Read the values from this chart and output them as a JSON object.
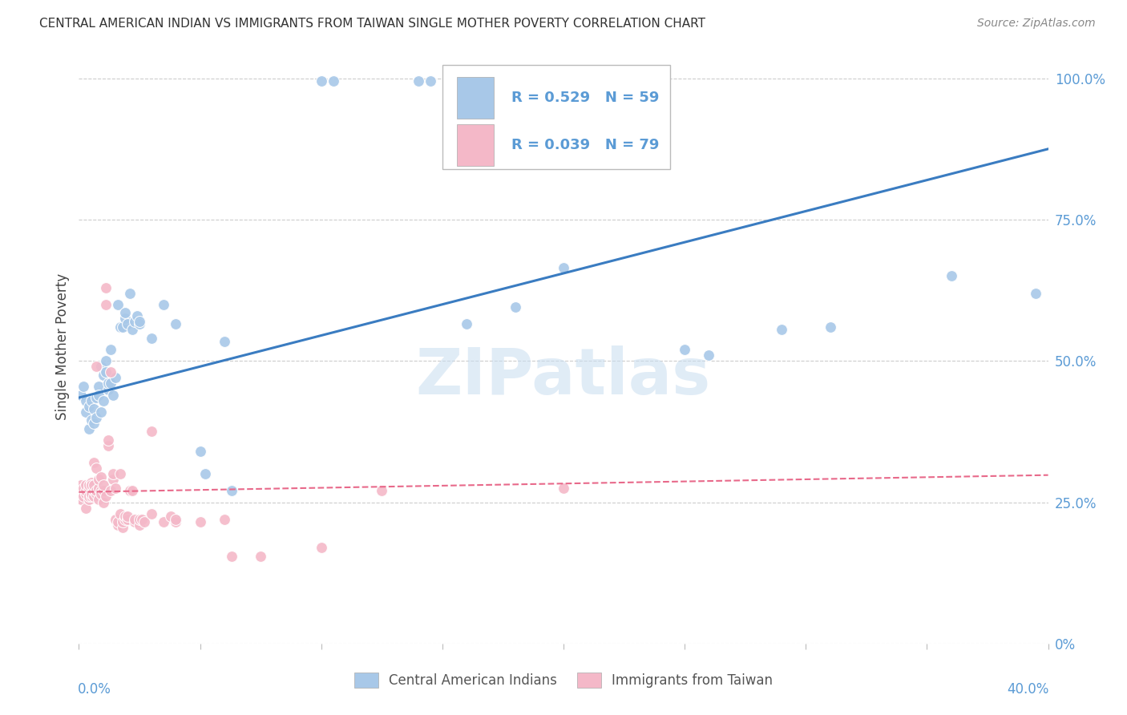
{
  "title": "CENTRAL AMERICAN INDIAN VS IMMIGRANTS FROM TAIWAN SINGLE MOTHER POVERTY CORRELATION CHART",
  "source": "Source: ZipAtlas.com",
  "ylabel": "Single Mother Poverty",
  "ylabel_right_ticks": [
    "0%",
    "25.0%",
    "50.0%",
    "75.0%",
    "100.0%"
  ],
  "ylabel_right_vals": [
    0.0,
    0.25,
    0.5,
    0.75,
    1.0
  ],
  "legend_blue_R": "R = 0.529",
  "legend_blue_N": "N = 59",
  "legend_pink_R": "R = 0.039",
  "legend_pink_N": "N = 79",
  "legend_label_blue": "Central American Indians",
  "legend_label_pink": "Immigrants from Taiwan",
  "watermark": "ZIPatlas",
  "blue_color": "#a8c8e8",
  "pink_color": "#f4b8c8",
  "blue_line_color": "#3a7cc1",
  "pink_line_color": "#e8698a",
  "legend_text_color": "#5b9bd5",
  "right_axis_color": "#5b9bd5",
  "blue_scatter": [
    [
      0.001,
      0.44
    ],
    [
      0.002,
      0.455
    ],
    [
      0.003,
      0.41
    ],
    [
      0.003,
      0.43
    ],
    [
      0.004,
      0.38
    ],
    [
      0.004,
      0.42
    ],
    [
      0.005,
      0.43
    ],
    [
      0.005,
      0.395
    ],
    [
      0.006,
      0.415
    ],
    [
      0.006,
      0.39
    ],
    [
      0.007,
      0.435
    ],
    [
      0.007,
      0.4
    ],
    [
      0.008,
      0.455
    ],
    [
      0.008,
      0.44
    ],
    [
      0.009,
      0.41
    ],
    [
      0.009,
      0.49
    ],
    [
      0.01,
      0.475
    ],
    [
      0.01,
      0.43
    ],
    [
      0.011,
      0.48
    ],
    [
      0.011,
      0.5
    ],
    [
      0.012,
      0.45
    ],
    [
      0.012,
      0.46
    ],
    [
      0.013,
      0.52
    ],
    [
      0.013,
      0.46
    ],
    [
      0.014,
      0.44
    ],
    [
      0.015,
      0.47
    ],
    [
      0.016,
      0.6
    ],
    [
      0.017,
      0.56
    ],
    [
      0.018,
      0.56
    ],
    [
      0.019,
      0.575
    ],
    [
      0.019,
      0.585
    ],
    [
      0.02,
      0.565
    ],
    [
      0.021,
      0.62
    ],
    [
      0.022,
      0.555
    ],
    [
      0.023,
      0.57
    ],
    [
      0.024,
      0.58
    ],
    [
      0.025,
      0.565
    ],
    [
      0.025,
      0.57
    ],
    [
      0.03,
      0.54
    ],
    [
      0.035,
      0.6
    ],
    [
      0.04,
      0.565
    ],
    [
      0.04,
      0.22
    ],
    [
      0.05,
      0.34
    ],
    [
      0.052,
      0.3
    ],
    [
      0.06,
      0.535
    ],
    [
      0.063,
      0.27
    ],
    [
      0.1,
      0.995
    ],
    [
      0.105,
      0.995
    ],
    [
      0.14,
      0.995
    ],
    [
      0.145,
      0.995
    ],
    [
      0.16,
      0.565
    ],
    [
      0.18,
      0.595
    ],
    [
      0.2,
      0.665
    ],
    [
      0.25,
      0.52
    ],
    [
      0.26,
      0.51
    ],
    [
      0.29,
      0.555
    ],
    [
      0.31,
      0.56
    ],
    [
      0.36,
      0.65
    ],
    [
      0.395,
      0.62
    ]
  ],
  "pink_scatter": [
    [
      0.001,
      0.27
    ],
    [
      0.001,
      0.26
    ],
    [
      0.001,
      0.255
    ],
    [
      0.001,
      0.28
    ],
    [
      0.002,
      0.265
    ],
    [
      0.002,
      0.27
    ],
    [
      0.002,
      0.275
    ],
    [
      0.002,
      0.26
    ],
    [
      0.003,
      0.265
    ],
    [
      0.003,
      0.27
    ],
    [
      0.003,
      0.28
    ],
    [
      0.003,
      0.24
    ],
    [
      0.004,
      0.255
    ],
    [
      0.004,
      0.26
    ],
    [
      0.004,
      0.275
    ],
    [
      0.004,
      0.28
    ],
    [
      0.005,
      0.26
    ],
    [
      0.005,
      0.265
    ],
    [
      0.005,
      0.285
    ],
    [
      0.005,
      0.28
    ],
    [
      0.006,
      0.26
    ],
    [
      0.006,
      0.27
    ],
    [
      0.006,
      0.28
    ],
    [
      0.006,
      0.32
    ],
    [
      0.007,
      0.265
    ],
    [
      0.007,
      0.27
    ],
    [
      0.007,
      0.31
    ],
    [
      0.007,
      0.49
    ],
    [
      0.008,
      0.255
    ],
    [
      0.008,
      0.275
    ],
    [
      0.008,
      0.29
    ],
    [
      0.009,
      0.27
    ],
    [
      0.009,
      0.265
    ],
    [
      0.009,
      0.295
    ],
    [
      0.01,
      0.25
    ],
    [
      0.01,
      0.27
    ],
    [
      0.01,
      0.28
    ],
    [
      0.011,
      0.6
    ],
    [
      0.011,
      0.63
    ],
    [
      0.011,
      0.26
    ],
    [
      0.012,
      0.35
    ],
    [
      0.012,
      0.36
    ],
    [
      0.013,
      0.27
    ],
    [
      0.013,
      0.48
    ],
    [
      0.014,
      0.29
    ],
    [
      0.014,
      0.3
    ],
    [
      0.015,
      0.22
    ],
    [
      0.015,
      0.275
    ],
    [
      0.016,
      0.21
    ],
    [
      0.016,
      0.215
    ],
    [
      0.017,
      0.3
    ],
    [
      0.017,
      0.23
    ],
    [
      0.018,
      0.205
    ],
    [
      0.018,
      0.215
    ],
    [
      0.019,
      0.22
    ],
    [
      0.019,
      0.225
    ],
    [
      0.02,
      0.22
    ],
    [
      0.02,
      0.225
    ],
    [
      0.021,
      0.27
    ],
    [
      0.022,
      0.27
    ],
    [
      0.023,
      0.215
    ],
    [
      0.023,
      0.22
    ],
    [
      0.025,
      0.21
    ],
    [
      0.025,
      0.22
    ],
    [
      0.026,
      0.22
    ],
    [
      0.027,
      0.215
    ],
    [
      0.03,
      0.23
    ],
    [
      0.03,
      0.375
    ],
    [
      0.035,
      0.215
    ],
    [
      0.038,
      0.225
    ],
    [
      0.04,
      0.215
    ],
    [
      0.04,
      0.22
    ],
    [
      0.05,
      0.215
    ],
    [
      0.06,
      0.22
    ],
    [
      0.063,
      0.155
    ],
    [
      0.075,
      0.155
    ],
    [
      0.1,
      0.17
    ],
    [
      0.125,
      0.27
    ],
    [
      0.2,
      0.275
    ]
  ],
  "blue_line_x": [
    0.0,
    0.4
  ],
  "blue_line_y": [
    0.435,
    0.875
  ],
  "pink_line_x": [
    0.0,
    0.4
  ],
  "pink_line_y": [
    0.268,
    0.298
  ],
  "xlim": [
    0.0,
    0.4
  ],
  "ylim": [
    0.0,
    1.05
  ],
  "x_ticks_count": 9
}
